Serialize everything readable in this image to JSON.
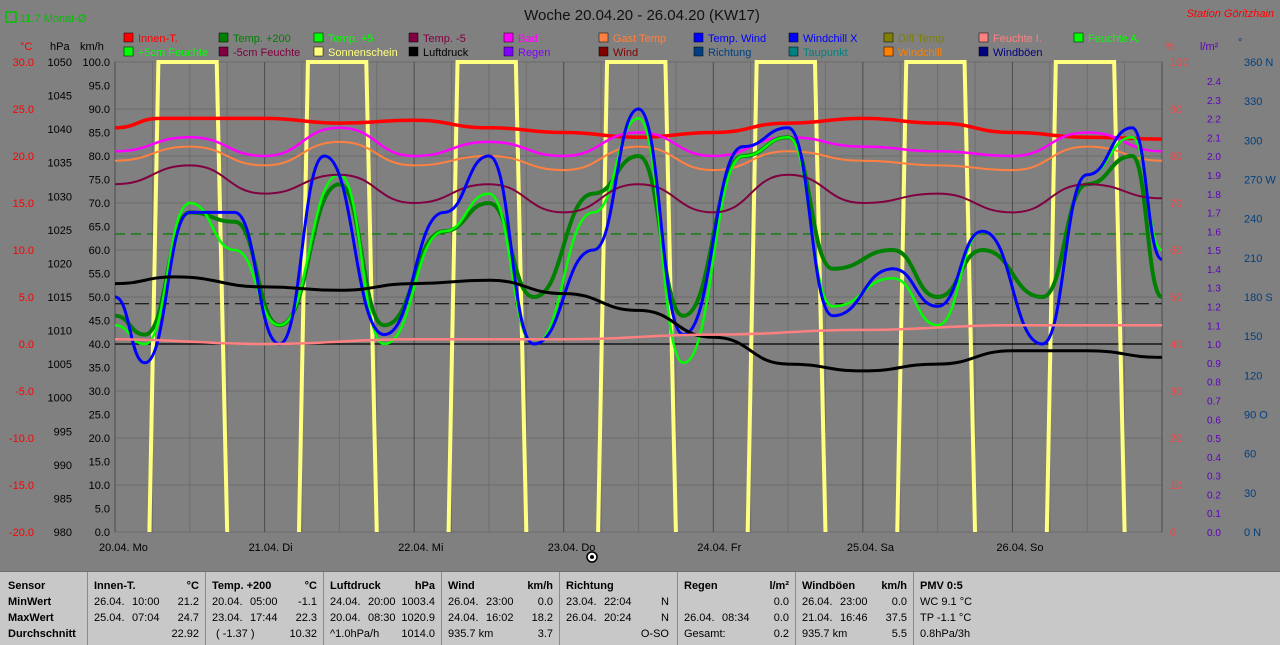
{
  "header": {
    "title": "Woche 20.04.20 - 26.04.20 (KW17)",
    "station": "Station Göritzhain",
    "monthly_avg": "11.7 Monat-Ø"
  },
  "units": {
    "temp": "°C",
    "hpa": "hPa",
    "kmh": "km/h",
    "pct": "%",
    "lm2": "l/m²",
    "deg": "°"
  },
  "legend": [
    {
      "label": "Innen-T.",
      "color": "#ff0000"
    },
    {
      "label": "Temp. +200",
      "color": "#008000"
    },
    {
      "label": "Temp. +5",
      "color": "#00ff00"
    },
    {
      "label": "Temp. -5",
      "color": "#800040"
    },
    {
      "label": "Bad",
      "color": "#ff00ff"
    },
    {
      "label": "Gast Temp",
      "color": "#ff8040"
    },
    {
      "label": "Temp. Wind",
      "color": "#0000ff"
    },
    {
      "label": "Windchill X",
      "color": "#0000ff"
    },
    {
      "label": "Diff Temp.",
      "color": "#808000"
    },
    {
      "label": "Feuchte I.",
      "color": "#ff8080"
    },
    {
      "label": "Feuchte A.",
      "color": "#00ff00"
    },
    {
      "label": "+5cm Feuchte",
      "color": "#00ff00"
    },
    {
      "label": "-5cm Feuchte",
      "color": "#800040"
    },
    {
      "label": "Sonnenschein",
      "color": "#ffff80"
    },
    {
      "label": "Luftdruck",
      "color": "#000000"
    },
    {
      "label": "Regen",
      "color": "#8000ff"
    },
    {
      "label": "Wind",
      "color": "#800000"
    },
    {
      "label": "Richtung",
      "color": "#004080"
    },
    {
      "label": "Taupunkt",
      "color": "#008080"
    },
    {
      "label": "Windchill",
      "color": "#ff8000"
    },
    {
      "label": "Windböen",
      "color": "#000080"
    }
  ],
  "axes": {
    "temp_ticks": [
      "30.0",
      "25.0",
      "20.0",
      "15.0",
      "10.0",
      "5.0",
      "0.0",
      "-5.0",
      "-10.0",
      "-15.0",
      "-20.0"
    ],
    "hpa_ticks": [
      "1050",
      "1045",
      "1040",
      "1035",
      "1030",
      "1025",
      "1020",
      "1015",
      "1010",
      "1005",
      "1000",
      "995",
      "990",
      "985",
      "980"
    ],
    "kmh_ticks": [
      "100.0",
      "95.0",
      "90.0",
      "85.0",
      "80.0",
      "75.0",
      "70.0",
      "65.0",
      "60.0",
      "55.0",
      "50.0",
      "45.0",
      "40.0",
      "35.0",
      "30.0",
      "25.0",
      "20.0",
      "15.0",
      "10.0",
      "5.0",
      "0.0"
    ],
    "pct_ticks": [
      "100",
      "90",
      "80",
      "70",
      "60",
      "50",
      "40",
      "30",
      "20",
      "10",
      "0"
    ],
    "rain_ticks": [
      "2.4",
      "2.3",
      "2.2",
      "2.1",
      "2.0",
      "1.9",
      "1.8",
      "1.7",
      "1.6",
      "1.5",
      "1.4",
      "1.3",
      "1.2",
      "1.1",
      "1.0",
      "0.9",
      "0.8",
      "0.7",
      "0.6",
      "0.5",
      "0.4",
      "0.3",
      "0.2",
      "0.1",
      "0.0"
    ],
    "dir_ticks": [
      "360 N",
      "330",
      "300",
      "270 W",
      "240",
      "210",
      "180 S",
      "150",
      "120",
      "90 O",
      "60",
      "30",
      "0 N"
    ],
    "days": [
      "20.04. Mo",
      "21.04. Di",
      "22.04. Mi",
      "23.04. Do",
      "24.04. Fr",
      "25.04. Sa",
      "26.04. So"
    ]
  },
  "chart_data": {
    "type": "line",
    "title": "Woche 20.04.20 - 26.04.20 (KW17)",
    "x": [
      "20.04.",
      "21.04.",
      "22.04.",
      "23.04.",
      "24.04.",
      "25.04.",
      "26.04."
    ],
    "x_unit": "day",
    "xlim": [
      0,
      7
    ],
    "temp_ylim": [
      -20,
      30
    ],
    "pressure_ylim": [
      980,
      1050
    ],
    "series": [
      {
        "name": "Innen-T.",
        "color": "#ff0000",
        "points": [
          [
            0,
            23
          ],
          [
            0.3,
            24
          ],
          [
            1,
            24
          ],
          [
            1.5,
            23.5
          ],
          [
            2,
            23.8
          ],
          [
            2.5,
            23
          ],
          [
            3,
            22.5
          ],
          [
            3.5,
            22
          ],
          [
            4,
            22.5
          ],
          [
            4.5,
            23.5
          ],
          [
            5,
            24
          ],
          [
            5.5,
            23.5
          ],
          [
            6,
            22.5
          ],
          [
            6.5,
            22
          ],
          [
            7,
            21.8
          ]
        ]
      },
      {
        "name": "Bad",
        "color": "#ff00ff",
        "points": [
          [
            0,
            20.5
          ],
          [
            0.5,
            22
          ],
          [
            1,
            20
          ],
          [
            1.5,
            23
          ],
          [
            2,
            20
          ],
          [
            2.5,
            21.5
          ],
          [
            3,
            20
          ],
          [
            3.5,
            22.5
          ],
          [
            4,
            20
          ],
          [
            4.5,
            22
          ],
          [
            5,
            21
          ],
          [
            5.5,
            20.5
          ],
          [
            6,
            20
          ],
          [
            6.5,
            22.5
          ],
          [
            7,
            20.5
          ]
        ]
      },
      {
        "name": "Gast Temp",
        "color": "#ff8040",
        "points": [
          [
            0,
            19.5
          ],
          [
            0.5,
            21
          ],
          [
            1,
            19
          ],
          [
            1.5,
            21.5
          ],
          [
            2,
            19
          ],
          [
            2.5,
            20
          ],
          [
            3,
            18.5
          ],
          [
            3.5,
            21
          ],
          [
            4,
            18.5
          ],
          [
            4.5,
            20.5
          ],
          [
            5,
            19.5
          ],
          [
            5.5,
            19
          ],
          [
            6,
            18.5
          ],
          [
            6.5,
            21
          ],
          [
            7,
            19.5
          ]
        ]
      },
      {
        "name": "Temp. +200",
        "color": "#008000",
        "points": [
          [
            0,
            3
          ],
          [
            0.2,
            1
          ],
          [
            0.5,
            14
          ],
          [
            0.8,
            13
          ],
          [
            1.1,
            2
          ],
          [
            1.5,
            17
          ],
          [
            1.8,
            2
          ],
          [
            2.2,
            12
          ],
          [
            2.5,
            15
          ],
          [
            2.8,
            5
          ],
          [
            3.2,
            16
          ],
          [
            3.5,
            20
          ],
          [
            3.8,
            3
          ],
          [
            4.2,
            20
          ],
          [
            4.5,
            22
          ],
          [
            4.8,
            8
          ],
          [
            5.2,
            10
          ],
          [
            5.5,
            5
          ],
          [
            5.8,
            10
          ],
          [
            6.2,
            5
          ],
          [
            6.5,
            17
          ],
          [
            6.8,
            20
          ],
          [
            7,
            5
          ]
        ]
      },
      {
        "name": "Temp. +5",
        "color": "#00ff00",
        "points": [
          [
            0,
            2
          ],
          [
            0.2,
            0
          ],
          [
            0.5,
            15
          ],
          [
            0.8,
            10
          ],
          [
            1.1,
            2
          ],
          [
            1.5,
            18
          ],
          [
            1.8,
            0
          ],
          [
            2.2,
            12
          ],
          [
            2.5,
            16
          ],
          [
            2.8,
            0
          ],
          [
            3.2,
            14
          ],
          [
            3.5,
            24
          ],
          [
            3.8,
            -2
          ],
          [
            4.2,
            20
          ],
          [
            4.5,
            22
          ],
          [
            4.8,
            4
          ],
          [
            5.2,
            7
          ],
          [
            5.5,
            2
          ],
          [
            5.8,
            12
          ],
          [
            6.2,
            0
          ],
          [
            6.5,
            18
          ],
          [
            6.8,
            22
          ],
          [
            7,
            10
          ]
        ]
      },
      {
        "name": "Temp. -5",
        "color": "#800040",
        "points": [
          [
            0,
            17
          ],
          [
            0.5,
            19
          ],
          [
            1,
            16
          ],
          [
            1.5,
            18
          ],
          [
            2,
            15
          ],
          [
            2.5,
            17
          ],
          [
            3,
            14
          ],
          [
            3.5,
            17
          ],
          [
            4,
            14
          ],
          [
            4.5,
            18
          ],
          [
            5,
            15
          ],
          [
            5.5,
            16
          ],
          [
            6,
            14
          ],
          [
            6.5,
            17
          ],
          [
            7,
            15.5
          ]
        ]
      },
      {
        "name": "Temp. Wind",
        "color": "#0000ff",
        "points": [
          [
            0,
            5
          ],
          [
            0.2,
            -2
          ],
          [
            0.5,
            14
          ],
          [
            0.8,
            14
          ],
          [
            1.1,
            0
          ],
          [
            1.4,
            20
          ],
          [
            1.8,
            1
          ],
          [
            2.2,
            14
          ],
          [
            2.5,
            20
          ],
          [
            2.8,
            0
          ],
          [
            3.2,
            10
          ],
          [
            3.5,
            25
          ],
          [
            3.8,
            1
          ],
          [
            4.2,
            21
          ],
          [
            4.5,
            23
          ],
          [
            4.8,
            3
          ],
          [
            5.2,
            8
          ],
          [
            5.5,
            4
          ],
          [
            5.8,
            12
          ],
          [
            6.2,
            0
          ],
          [
            6.5,
            18
          ],
          [
            6.8,
            23
          ],
          [
            7,
            9
          ]
        ]
      },
      {
        "name": "Luftdruck",
        "color": "#000000",
        "points": [
          [
            0,
            1017
          ],
          [
            0.4,
            1018
          ],
          [
            1,
            1016.5
          ],
          [
            1.5,
            1016
          ],
          [
            2,
            1017
          ],
          [
            2.5,
            1017.5
          ],
          [
            3,
            1015.5
          ],
          [
            3.5,
            1013
          ],
          [
            4,
            1009
          ],
          [
            4.5,
            1005
          ],
          [
            5,
            1004
          ],
          [
            5.5,
            1005
          ],
          [
            6,
            1007
          ],
          [
            6.5,
            1007
          ],
          [
            7,
            1006
          ]
        ]
      },
      {
        "name": "Feuchte I.",
        "color": "#ff8080",
        "points": [
          [
            0,
            41
          ],
          [
            1,
            40
          ],
          [
            2,
            41
          ],
          [
            3,
            41
          ],
          [
            4,
            42
          ],
          [
            5,
            43
          ],
          [
            6,
            44
          ],
          [
            7,
            44
          ]
        ]
      }
    ],
    "reference_lines": [
      {
        "name": "Monat-Ø",
        "value": 11.7,
        "unit": "°C",
        "color": "#008000"
      },
      {
        "name": "0.0",
        "value": 0,
        "unit": "°C",
        "color": "#000000"
      }
    ],
    "grid": true,
    "legend_position": "top"
  },
  "stats": {
    "sensor": {
      "title": "Sensor",
      "rows": [
        "MinWert",
        "MaxWert",
        "Durchschnitt"
      ]
    },
    "innen": {
      "title": "Innen-T.",
      "unit": "°C",
      "min": [
        "26.04.",
        "10:00",
        "21.2"
      ],
      "max": [
        "25.04.",
        "07:04",
        "24.7"
      ],
      "avg": "22.92"
    },
    "temp200": {
      "title": "Temp. +200",
      "unit": "°C",
      "min": [
        "20.04.",
        "05:00",
        "-1.1"
      ],
      "max": [
        "23.04.",
        "17:44",
        "22.3"
      ],
      "avg_note": "( -1.37 )",
      "avg": "10.32"
    },
    "druck": {
      "title": "Luftdruck",
      "unit": "hPa",
      "min": [
        "24.04.",
        "20:00",
        "1003.4"
      ],
      "max": [
        "20.04.",
        "08:30",
        "1020.9"
      ],
      "avg_note": "^1.0hPa/h",
      "avg": "1014.0"
    },
    "wind": {
      "title": "Wind",
      "unit": "km/h",
      "min": [
        "26.04.",
        "23:00",
        "0.0"
      ],
      "max": [
        "24.04.",
        "16:02",
        "18.2"
      ],
      "avg_note": "935.7 km",
      "avg": "3.7"
    },
    "richtung": {
      "title": "Richtung",
      "min": [
        "23.04.",
        "22:04",
        "N"
      ],
      "max": [
        "26.04.",
        "20:24",
        "N"
      ],
      "avg": "O-SO"
    },
    "regen": {
      "title": "Regen",
      "unit": "l/m²",
      "min": [
        "",
        "",
        "0.0"
      ],
      "max": [
        "26.04.",
        "08:34",
        "0.0"
      ],
      "avg_note": "Gesamt:",
      "avg": "0.2"
    },
    "boeen": {
      "title": "Windböen",
      "unit": "km/h",
      "min": [
        "26.04.",
        "23:00",
        "0.0"
      ],
      "max": [
        "21.04.",
        "16:46",
        "37.5"
      ],
      "avg_note": "935.7 km",
      "avg": "5.5"
    },
    "pmv": {
      "title": "PMV 0:5",
      "rows": [
        "WC 9.1 °C",
        "TP -1.1 °C",
        "0.8hPa/3h"
      ]
    }
  }
}
